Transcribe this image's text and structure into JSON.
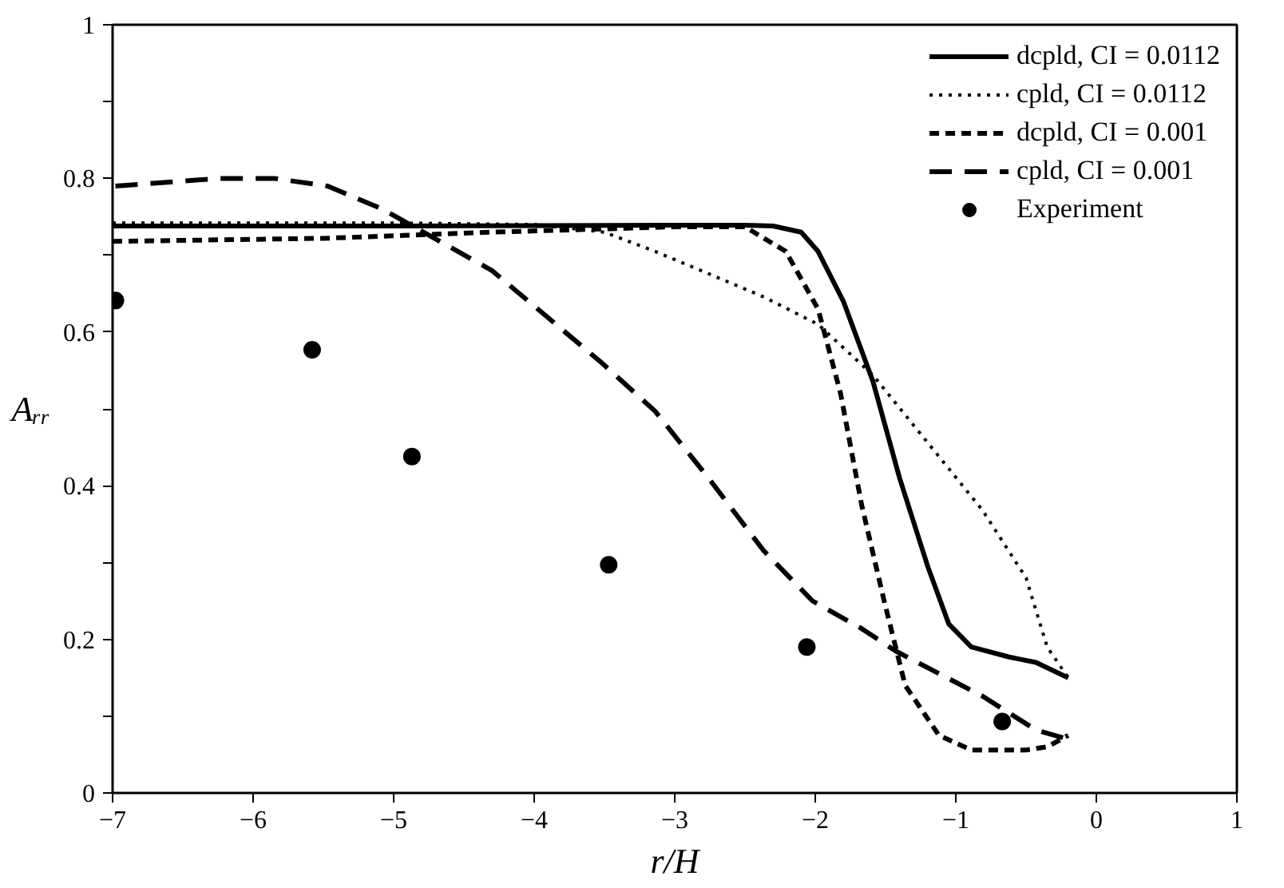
{
  "chart_data": {
    "type": "line",
    "xlabel": "r/H",
    "ylabel": "Aᵣᵣ",
    "xlim": [
      -7,
      1
    ],
    "ylim": [
      0,
      1
    ],
    "xticks": [
      -7,
      -6,
      -5,
      -4,
      -3,
      -2,
      -1,
      0,
      1
    ],
    "yticks": [
      0,
      {
        "value": 0.1,
        "label": null
      },
      0.2,
      {
        "value": 0.3,
        "label": null
      },
      0.4,
      {
        "value": 0.5,
        "label": null
      },
      0.6,
      {
        "value": 0.7,
        "label": null
      },
      0.8,
      {
        "value": 0.9,
        "label": null
      },
      1
    ],
    "grid": false,
    "legend": "top right",
    "series": [
      {
        "name": "dcpld, CI = 0.0112",
        "color": "#000000",
        "line_style": "solid",
        "x": [
          -7,
          -5,
          -3,
          -2.5,
          -2.3,
          -2.1,
          -1.98,
          -1.8,
          -1.59,
          -1.4,
          -1.2,
          -1.05,
          -0.89,
          -0.62,
          -0.43,
          -0.2
        ],
        "values": [
          0.738,
          0.738,
          0.739,
          0.739,
          0.738,
          0.73,
          0.705,
          0.64,
          0.536,
          0.41,
          0.295,
          0.22,
          0.19,
          0.177,
          0.17,
          0.15
        ]
      },
      {
        "name": "cpld, CI = 0.0112",
        "color": "#000000",
        "line_style": "dotted",
        "x": [
          -7,
          -5,
          -4,
          -3.5,
          -3.14,
          -2.76,
          -2.37,
          -1.98,
          -1.59,
          -1.2,
          -0.81,
          -0.5,
          -0.35,
          -0.2
        ],
        "values": [
          0.742,
          0.742,
          0.74,
          0.73,
          0.705,
          0.676,
          0.646,
          0.61,
          0.544,
          0.456,
          0.368,
          0.28,
          0.19,
          0.15
        ]
      },
      {
        "name": "dcpld, CI = 0.001",
        "color": "#000000",
        "line_style": "dashed",
        "x": [
          -7,
          -5.5,
          -4.3,
          -3,
          -2.5,
          -2.21,
          -1.98,
          -1.82,
          -1.67,
          -1.51,
          -1.36,
          -1.12,
          -0.89,
          -0.5,
          -0.35,
          -0.2
        ],
        "values": [
          0.718,
          0.722,
          0.73,
          0.737,
          0.737,
          0.705,
          0.63,
          0.52,
          0.375,
          0.25,
          0.14,
          0.075,
          0.056,
          0.056,
          0.06,
          0.075
        ]
      },
      {
        "name": "cpld, CI = 0.001",
        "color": "#000000",
        "line_style": "dashed",
        "x": [
          -6.98,
          -6.24,
          -5.85,
          -5.47,
          -5.08,
          -4.69,
          -4.3,
          -3.91,
          -3.52,
          -3.14,
          -2.76,
          -2.37,
          -2.02,
          -1.67,
          -1.43,
          -1.2,
          -0.81,
          -0.43,
          -0.2
        ],
        "values": [
          0.79,
          0.8,
          0.8,
          0.79,
          0.76,
          0.72,
          0.68,
          0.62,
          0.56,
          0.497,
          0.41,
          0.316,
          0.25,
          0.214,
          0.185,
          0.163,
          0.126,
          0.082,
          0.07
        ]
      },
      {
        "name": "Experiment",
        "type": "scatter",
        "marker": "circle",
        "color": "#000000",
        "x": [
          -6.98,
          -5.58,
          -4.87,
          -3.47,
          -2.06,
          -0.67
        ],
        "values": [
          0.641,
          0.577,
          0.438,
          0.297,
          0.19,
          0.093
        ]
      }
    ]
  }
}
